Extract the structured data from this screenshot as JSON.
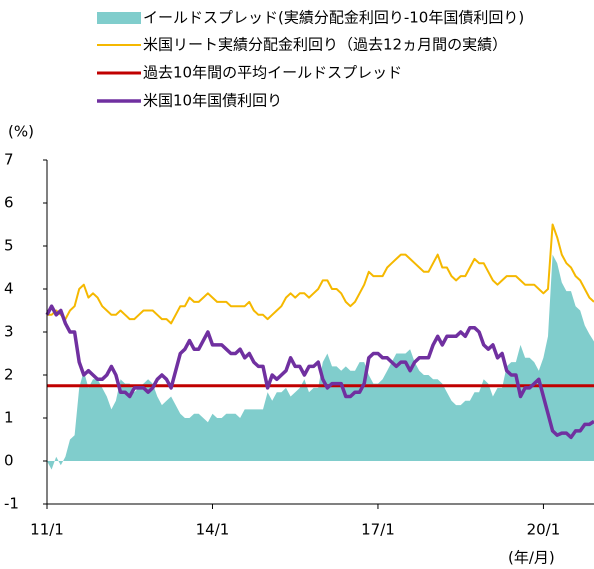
{
  "chart_data": {
    "type": "line",
    "y_label": "(%)",
    "x_label": "(年/月)",
    "categories": [
      "11/1",
      null,
      null,
      null,
      null,
      null,
      null,
      null,
      null,
      null,
      null,
      null,
      null,
      null,
      null,
      null,
      null,
      null,
      null,
      null,
      null,
      null,
      null,
      null,
      null,
      null,
      null,
      null,
      null,
      null,
      null,
      null,
      null,
      null,
      null,
      null,
      "14/1",
      null,
      null,
      null,
      null,
      null,
      null,
      null,
      null,
      null,
      null,
      null,
      null,
      null,
      null,
      null,
      null,
      null,
      null,
      null,
      null,
      null,
      null,
      null,
      null,
      null,
      null,
      null,
      null,
      null,
      null,
      null,
      null,
      null,
      null,
      null,
      "17/1",
      null,
      null,
      null,
      null,
      null,
      null,
      null,
      null,
      null,
      null,
      null,
      null,
      null,
      null,
      null,
      null,
      null,
      null,
      null,
      null,
      null,
      null,
      null,
      null,
      null,
      null,
      null,
      null,
      null,
      null,
      null,
      null,
      null,
      null,
      null,
      "20/1",
      null,
      null,
      null,
      null,
      null,
      null,
      null,
      null,
      null,
      null,
      null
    ],
    "series": [
      {
        "name": "イールドスプレッド(実績分配金利回り-10年国債利回り)",
        "kind": "area",
        "color": "#80cdcc",
        "values": [
          0,
          -0.2,
          0.1,
          -0.1,
          0.1,
          0.5,
          0.6,
          1.7,
          2.1,
          1.7,
          1.9,
          1.9,
          1.7,
          1.5,
          1.2,
          1.4,
          1.9,
          1.8,
          1.8,
          1.6,
          1.7,
          1.8,
          1.9,
          1.8,
          1.5,
          1.3,
          1.4,
          1.5,
          1.3,
          1.1,
          1.0,
          1.0,
          1.1,
          1.1,
          1.0,
          0.9,
          1.1,
          1.0,
          1.0,
          1.1,
          1.1,
          1.1,
          1.0,
          1.2,
          1.2,
          1.2,
          1.2,
          1.2,
          1.6,
          1.4,
          1.6,
          1.6,
          1.7,
          1.5,
          1.6,
          1.7,
          1.9,
          1.6,
          1.7,
          1.7,
          2.3,
          2.5,
          2.2,
          2.2,
          2.1,
          2.2,
          2.1,
          2.1,
          2.3,
          2.3,
          2.0,
          1.8,
          1.8,
          1.9,
          2.1,
          2.3,
          2.5,
          2.5,
          2.5,
          2.6,
          2.3,
          2.1,
          2.0,
          2.0,
          1.9,
          1.9,
          1.8,
          1.6,
          1.4,
          1.3,
          1.3,
          1.4,
          1.4,
          1.6,
          1.6,
          1.9,
          1.8,
          1.5,
          1.7,
          1.7,
          2.2,
          2.3,
          2.3,
          2.7,
          2.4,
          2.4,
          2.3,
          2.1,
          2.4,
          2.9,
          4.8,
          4.6,
          4.15,
          3.95,
          3.95,
          3.6,
          3.5,
          3.15,
          2.95,
          2.78
        ]
      },
      {
        "name": "米国リート実績分配金利回り（過去12ヵ月間の実績）",
        "kind": "line",
        "color": "#f5b800",
        "values": [
          3.4,
          3.4,
          3.5,
          3.4,
          3.3,
          3.5,
          3.6,
          4.0,
          4.1,
          3.8,
          3.9,
          3.8,
          3.6,
          3.5,
          3.4,
          3.4,
          3.5,
          3.4,
          3.3,
          3.3,
          3.4,
          3.5,
          3.5,
          3.5,
          3.4,
          3.3,
          3.3,
          3.2,
          3.4,
          3.6,
          3.6,
          3.8,
          3.7,
          3.7,
          3.8,
          3.9,
          3.8,
          3.7,
          3.7,
          3.7,
          3.6,
          3.6,
          3.6,
          3.6,
          3.7,
          3.5,
          3.4,
          3.4,
          3.3,
          3.4,
          3.5,
          3.6,
          3.8,
          3.9,
          3.8,
          3.9,
          3.9,
          3.8,
          3.9,
          4.0,
          4.2,
          4.2,
          4.0,
          4.0,
          3.9,
          3.7,
          3.6,
          3.7,
          3.9,
          4.1,
          4.4,
          4.3,
          4.3,
          4.3,
          4.5,
          4.6,
          4.7,
          4.8,
          4.8,
          4.7,
          4.6,
          4.5,
          4.4,
          4.4,
          4.6,
          4.8,
          4.5,
          4.5,
          4.3,
          4.2,
          4.3,
          4.3,
          4.5,
          4.7,
          4.6,
          4.6,
          4.4,
          4.2,
          4.1,
          4.2,
          4.3,
          4.3,
          4.3,
          4.2,
          4.1,
          4.1,
          4.1,
          4.0,
          3.9,
          4.0,
          5.5,
          5.2,
          4.8,
          4.6,
          4.5,
          4.3,
          4.2,
          4.0,
          3.8,
          3.7
        ]
      },
      {
        "name": "米国10年国債利回り",
        "kind": "line",
        "color": "#7030a0",
        "values": [
          3.4,
          3.6,
          3.4,
          3.5,
          3.2,
          3.0,
          3.0,
          2.3,
          2.0,
          2.1,
          2.0,
          1.9,
          1.9,
          2.0,
          2.2,
          2.0,
          1.6,
          1.6,
          1.5,
          1.7,
          1.7,
          1.7,
          1.6,
          1.7,
          1.9,
          2.0,
          1.9,
          1.7,
          2.1,
          2.5,
          2.6,
          2.8,
          2.6,
          2.6,
          2.8,
          3.0,
          2.7,
          2.7,
          2.7,
          2.6,
          2.5,
          2.5,
          2.6,
          2.4,
          2.5,
          2.3,
          2.2,
          2.2,
          1.7,
          2.0,
          1.9,
          2.0,
          2.1,
          2.4,
          2.2,
          2.2,
          2.0,
          2.2,
          2.2,
          2.3,
          1.9,
          1.7,
          1.8,
          1.8,
          1.8,
          1.5,
          1.5,
          1.6,
          1.6,
          1.8,
          2.4,
          2.5,
          2.5,
          2.4,
          2.4,
          2.3,
          2.2,
          2.3,
          2.3,
          2.1,
          2.3,
          2.4,
          2.4,
          2.4,
          2.7,
          2.9,
          2.7,
          2.9,
          2.9,
          2.9,
          3.0,
          2.9,
          3.1,
          3.1,
          3.0,
          2.7,
          2.6,
          2.7,
          2.4,
          2.5,
          2.1,
          2.0,
          2.0,
          1.5,
          1.7,
          1.7,
          1.8,
          1.9,
          1.5,
          1.1,
          0.7,
          0.6,
          0.65,
          0.65,
          0.55,
          0.7,
          0.7,
          0.85,
          0.85,
          0.92
        ]
      }
    ],
    "reference_line": {
      "name": "過去10年間の平均イールドスプレッド",
      "color": "#c00000",
      "value": 1.75
    },
    "ylim": [
      -1,
      7
    ],
    "yticks": [
      -1,
      0,
      1,
      2,
      3,
      4,
      5,
      6,
      7
    ]
  }
}
